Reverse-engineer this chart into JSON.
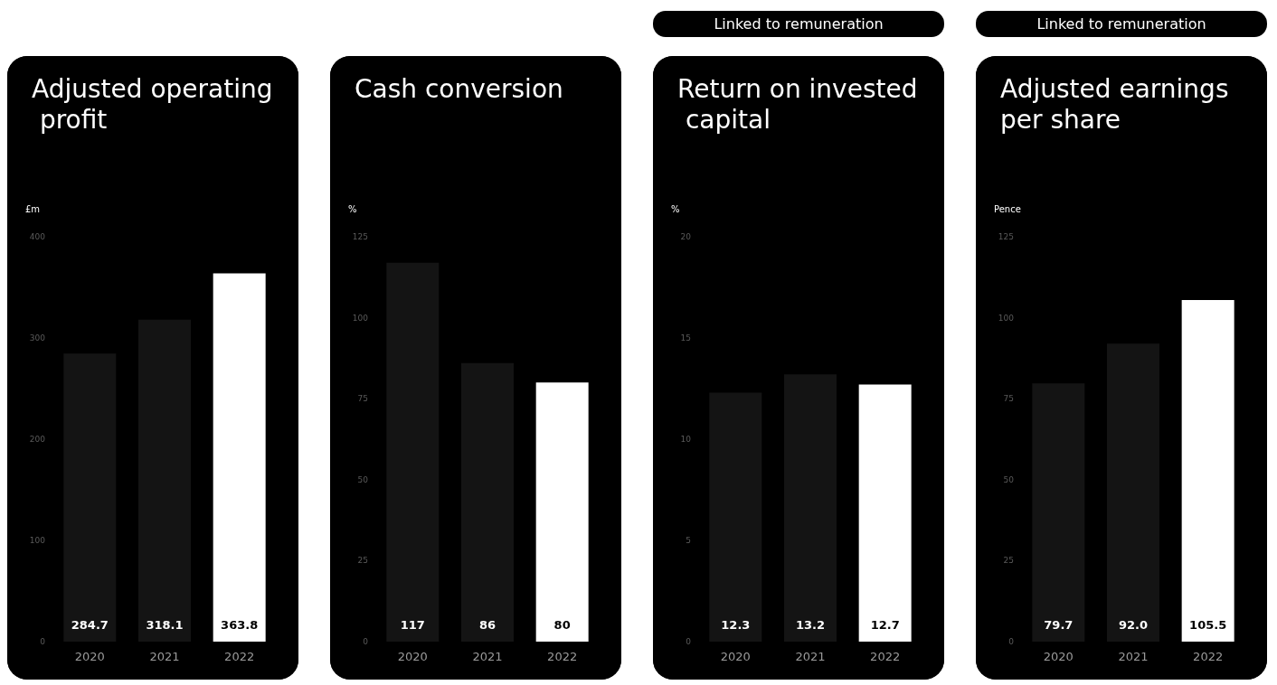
{
  "chart_data": [
    {
      "type": "bar",
      "title": "Adjusted operating profit",
      "ylabel": "£m",
      "categories": [
        "2020",
        "2021",
        "2022"
      ],
      "values": [
        284.7,
        318.1,
        363.8
      ],
      "colors": [
        "#141414",
        "#141414",
        "#ffffff"
      ],
      "data_labels": true,
      "ylim": [
        0,
        400
      ],
      "yticks": [
        0,
        100,
        200,
        300,
        400
      ],
      "grid": false
    },
    {
      "type": "bar",
      "title": "Cash conversion",
      "ylabel": "%",
      "categories": [
        "2020",
        "2021",
        "2022"
      ],
      "values": [
        117,
        86,
        80
      ],
      "colors": [
        "#141414",
        "#141414",
        "#ffffff"
      ],
      "data_labels": true,
      "ylim": [
        0,
        125
      ],
      "yticks": [
        0,
        25,
        50,
        75,
        100,
        125
      ],
      "grid": false
    },
    {
      "type": "bar",
      "title": "Return on invested capital",
      "ylabel": "%",
      "annotations": [
        "Linked to remuneration"
      ],
      "categories": [
        "2020",
        "2021",
        "2022"
      ],
      "values": [
        12.3,
        13.2,
        12.7
      ],
      "colors": [
        "#141414",
        "#141414",
        "#ffffff"
      ],
      "data_labels": true,
      "ylim": [
        0,
        20
      ],
      "yticks": [
        0,
        5,
        10,
        15,
        20
      ],
      "grid": false
    },
    {
      "type": "bar",
      "title": "Adjusted earnings per share",
      "ylabel": "Pence",
      "annotations": [
        "Linked to remuneration"
      ],
      "categories": [
        "2020",
        "2021",
        "2022"
      ],
      "values": [
        79.7,
        92.0,
        105.5
      ],
      "value_labels": [
        "79.7",
        "92.0",
        "105.5"
      ],
      "colors": [
        "#141414",
        "#141414",
        "#ffffff"
      ],
      "ylim": [
        0,
        125
      ],
      "yticks": [
        0,
        25,
        50,
        75,
        100,
        125
      ],
      "grid": false
    }
  ]
}
